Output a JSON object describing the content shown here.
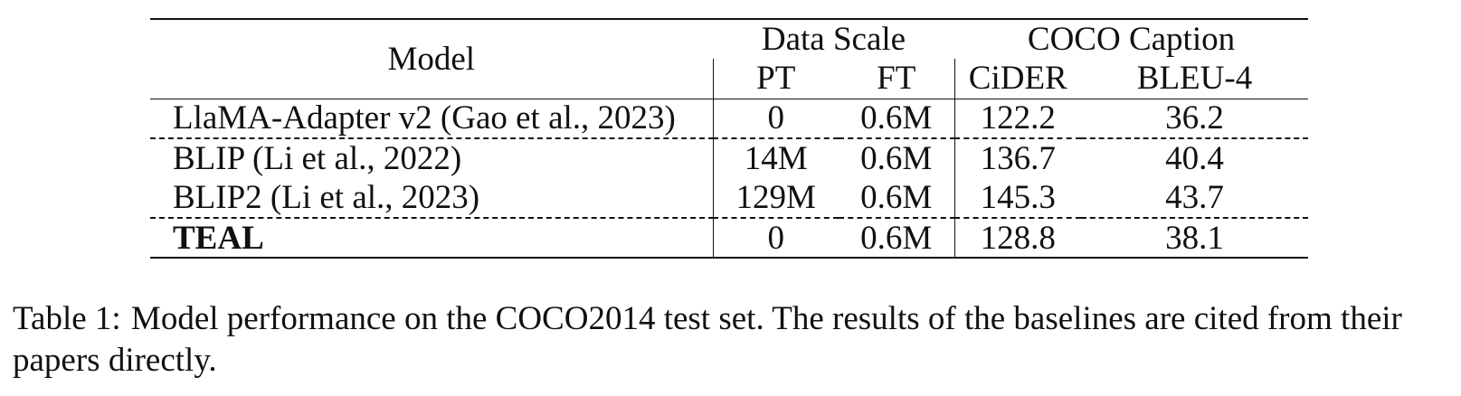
{
  "table": {
    "header": {
      "model_label": "Model",
      "group1_label": "Data Scale",
      "group2_label": "COCO Caption",
      "sub_columns": [
        "PT",
        "FT",
        "CiDER",
        "BLEU-4"
      ]
    },
    "rows": [
      {
        "model": "LlaMA-Adapter v2 (Gao et al., 2023)",
        "pt": "0",
        "ft": "0.6M",
        "cider": "122.2",
        "bleu4": "36.2"
      },
      {
        "model": "BLIP (Li et al., 2022)",
        "pt": "14M",
        "ft": "0.6M",
        "cider": "136.7",
        "bleu4": "40.4"
      },
      {
        "model": "BLIP2 (Li et al., 2023)",
        "pt": "129M",
        "ft": "0.6M",
        "cider": "145.3",
        "bleu4": "43.7"
      },
      {
        "model": "TEAL",
        "pt": "0",
        "ft": "0.6M",
        "cider": "128.8",
        "bleu4": "38.1"
      }
    ]
  },
  "caption": {
    "label": "Table 1:",
    "text": "Model performance on the COCO2014 test set. The results of the baselines are cited from their papers directly."
  }
}
